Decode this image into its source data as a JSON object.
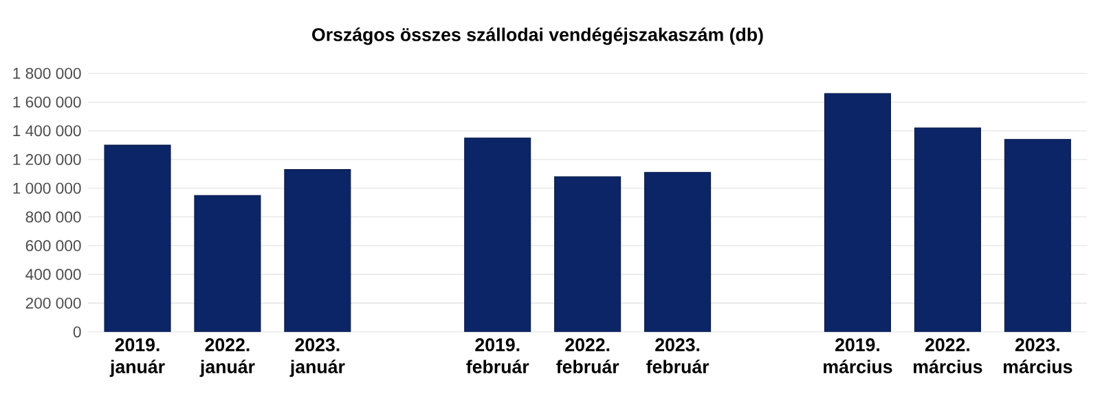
{
  "chart_data": {
    "type": "bar",
    "title": "Országos összes szállodai vendégéjszakaszám (db)",
    "categories": [
      "2019. január",
      "2022. január",
      "2023. január",
      null,
      "2019. február",
      "2022. február",
      "2023. február",
      null,
      "2019. március",
      "2022. március",
      "2023. március"
    ],
    "values": [
      1300000,
      950000,
      1130000,
      null,
      1350000,
      1080000,
      1110000,
      null,
      1660000,
      1420000,
      1340000
    ],
    "color": "#0b2566",
    "ylim": [
      0,
      1800000
    ],
    "yticks": [
      0,
      {
        "value": 200000,
        "label": "200 000"
      },
      {
        "value": 400000,
        "label": "400 000"
      },
      {
        "value": 600000,
        "label": "600 000"
      },
      {
        "value": 800000,
        "label": "800 000"
      },
      {
        "value": 1000000,
        "label": "1 000 000"
      },
      {
        "value": 1200000,
        "label": "1 200 000"
      },
      {
        "value": 1400000,
        "label": "1 400 000"
      },
      {
        "value": 1600000,
        "label": "1 600 000"
      },
      {
        "value": 1800000,
        "label": "1 800 000"
      }
    ],
    "grid": "y"
  }
}
